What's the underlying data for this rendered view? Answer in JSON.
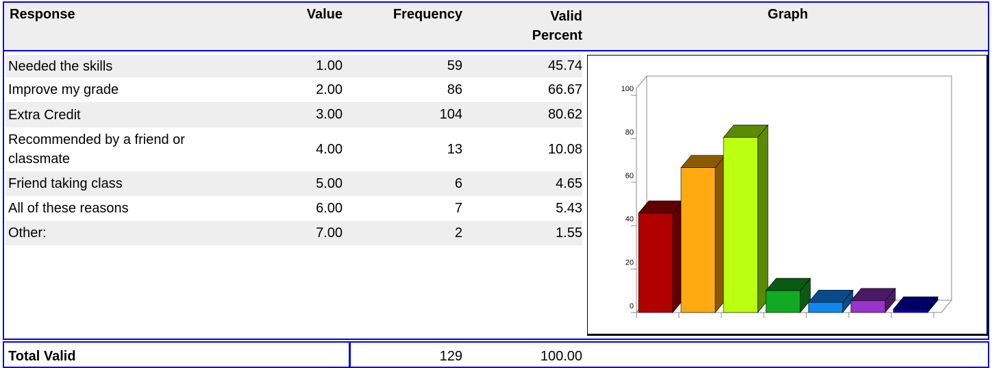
{
  "header": {
    "response": "Response",
    "value": "Value",
    "frequency": "Frequency",
    "valid_percent": "Valid Percent",
    "graph": "Graph"
  },
  "table": {
    "rows": [
      [
        "Needed the skills",
        "1.00",
        "59",
        "45.74"
      ],
      [
        "Improve my grade",
        "2.00",
        "86",
        "66.67"
      ],
      [
        "Extra Credit",
        "3.00",
        "104",
        "80.62"
      ],
      [
        "Recommended by a friend or classmate",
        "4.00",
        "13",
        "10.08"
      ],
      [
        "Friend taking class",
        "5.00",
        "6",
        "4.65"
      ],
      [
        "All of these reasons",
        "6.00",
        "7",
        "5.43"
      ],
      [
        "Other:",
        "7.00",
        "2",
        "1.55"
      ]
    ]
  },
  "total": {
    "label": "Total Valid",
    "frequency": "129",
    "valid_percent": "100.00"
  },
  "graph": {
    "type": "bar",
    "ylim": [
      0,
      100
    ],
    "yticks": [
      0,
      20,
      40,
      60,
      80,
      100
    ],
    "colors": [
      [
        "#b00000",
        "#600000"
      ],
      [
        "#ffaa11",
        "#8a5a00"
      ],
      [
        "#bbff11",
        "#5a8a00"
      ],
      [
        "#11aa22",
        "#0a5a14"
      ],
      [
        "#1188ee",
        "#0a4a8a"
      ],
      [
        "#9933cc",
        "#4a1a66"
      ],
      [
        "#0000aa",
        "#000066"
      ]
    ]
  }
}
